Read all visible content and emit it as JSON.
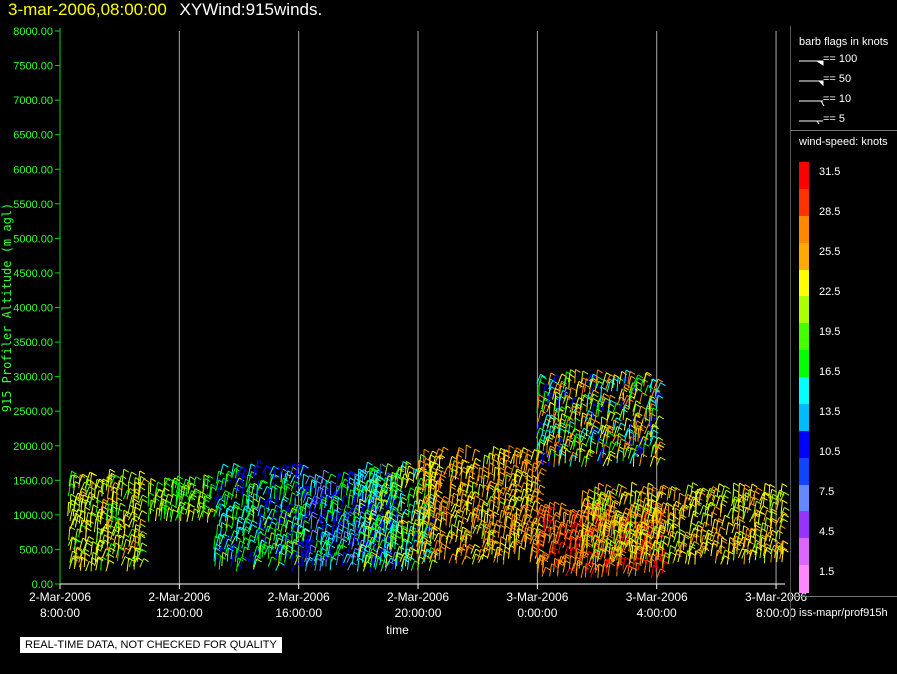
{
  "header": {
    "date": "3-mar-2006,08:00:00",
    "title": "XYWind:915winds."
  },
  "chart_data": {
    "type": "scatter",
    "title": "3-mar-2006,08:00:00  XYWind:915winds.",
    "xlabel": "time",
    "ylabel": "915 Profiler Altitude (m agl)",
    "ylim": [
      0,
      8000
    ],
    "y_ticks": [
      "0.00",
      "500.00",
      "1000.00",
      "1500.00",
      "2000.00",
      "2500.00",
      "3000.00",
      "3500.00",
      "4000.00",
      "4500.00",
      "5000.00",
      "5500.00",
      "6000.00",
      "6500.00",
      "7000.00",
      "7500.00",
      "8000.00"
    ],
    "x_ticks": [
      {
        "date": "2-Mar-2006",
        "time": "8:00:00"
      },
      {
        "date": "2-Mar-2006",
        "time": "12:00:00"
      },
      {
        "date": "2-Mar-2006",
        "time": "16:00:00"
      },
      {
        "date": "2-Mar-2006",
        "time": "20:00:00"
      },
      {
        "date": "3-Mar-2006",
        "time": "0:00:00"
      },
      {
        "date": "3-Mar-2006",
        "time": "4:00:00"
      },
      {
        "date": "3-Mar-2006",
        "time": "8:00:00"
      }
    ],
    "xlim_hours": [
      0,
      24.3
    ],
    "grid": "vertical",
    "regimes": [
      {
        "t0": 0.3,
        "t1": 2.8,
        "h0": 200,
        "h1": 1500,
        "speed": 21,
        "spread": 4
      },
      {
        "t0": 3.0,
        "t1": 5.0,
        "h0": 900,
        "h1": 1400,
        "speed": 19,
        "spread": 3
      },
      {
        "t0": 5.2,
        "t1": 8.2,
        "h0": 200,
        "h1": 1600,
        "speed": 14,
        "spread": 5
      },
      {
        "t0": 8.2,
        "t1": 11.2,
        "h0": 200,
        "h1": 1500,
        "speed": 12,
        "spread": 5
      },
      {
        "t0": 10.0,
        "t1": 12.4,
        "h0": 200,
        "h1": 1600,
        "speed": 17,
        "spread": 6
      },
      {
        "t0": 12.0,
        "t1": 16.0,
        "h0": 300,
        "h1": 1800,
        "speed": 25,
        "spread": 5
      },
      {
        "t0": 16.0,
        "t1": 20.3,
        "h0": 100,
        "h1": 1000,
        "speed": 29,
        "spread": 3
      },
      {
        "t0": 17.5,
        "t1": 24.3,
        "h0": 300,
        "h1": 1300,
        "speed": 23,
        "spread": 5
      },
      {
        "t0": 16.0,
        "t1": 20.0,
        "h0": 1700,
        "h1": 2900,
        "speed": 20,
        "spread": 10
      }
    ],
    "legend": {
      "barb_title": "barb flags in knots",
      "barb_entries": [
        "== 100",
        "== 50",
        "== 10",
        "== 5"
      ],
      "colorbar_title": "wind-speed: knots",
      "colorbar_labels": [
        "31.5",
        "28.5",
        "25.5",
        "22.5",
        "19.5",
        "16.5",
        "13.5",
        "10.5",
        "7.5",
        "4.5",
        "1.5"
      ],
      "colorbar_colors": [
        "#ff0000",
        "#ff3300",
        "#ff8800",
        "#ffaa00",
        "#ffff00",
        "#aaff00",
        "#44ff00",
        "#00ff00",
        "#00ffff",
        "#00bbff",
        "#0000ff",
        "#1144ff",
        "#6688ff",
        "#9933ff",
        "#dd66ff",
        "#ff88ff"
      ]
    }
  },
  "footer": {
    "source_id": "iss-mapr/prof915h",
    "quality_note": "REAL-TIME DATA, NOT CHECKED FOR QUALITY"
  }
}
